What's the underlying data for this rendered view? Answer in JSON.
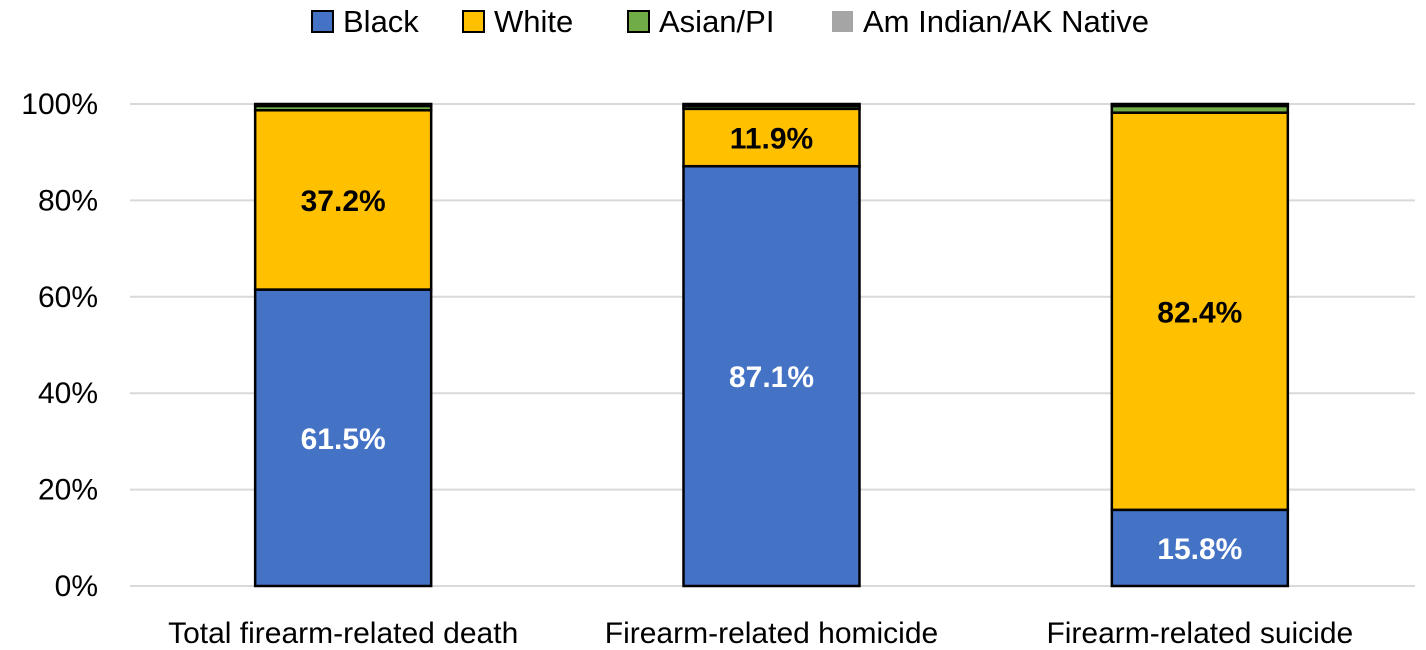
{
  "chart_data": {
    "type": "bar",
    "stacked": true,
    "percent_stacked": true,
    "title": "",
    "xlabel": "",
    "ylabel": "",
    "ylim": [
      0,
      100
    ],
    "yticks": [
      "0%",
      "20%",
      "40%",
      "60%",
      "80%",
      "100%"
    ],
    "grid": true,
    "legend_position": "top",
    "categories": [
      "Total firearm-related death",
      "Firearm-related homicide",
      "Firearm-related suicide"
    ],
    "series": [
      {
        "name": "Black",
        "color": "#4472C4",
        "values": [
          61.5,
          87.1,
          15.8
        ],
        "labels": [
          "61.5%",
          "87.1%",
          "15.8%"
        ],
        "label_color": "#ffffff"
      },
      {
        "name": "White",
        "color": "#FFC000",
        "values": [
          37.2,
          11.9,
          82.4
        ],
        "labels": [
          "37.2%",
          "11.9%",
          "82.4%"
        ],
        "label_color": "#000000"
      },
      {
        "name": "Asian/PI",
        "color": "#70AD47",
        "values": [
          0.9,
          0.6,
          1.4
        ],
        "labels": [
          "",
          "",
          ""
        ],
        "label_color": "#000000"
      },
      {
        "name": "Am Indian/AK Native",
        "color": "#A5A5A5",
        "values": [
          0.4,
          0.4,
          0.4
        ],
        "labels": [
          "",
          "",
          ""
        ],
        "label_color": "#000000"
      }
    ]
  }
}
